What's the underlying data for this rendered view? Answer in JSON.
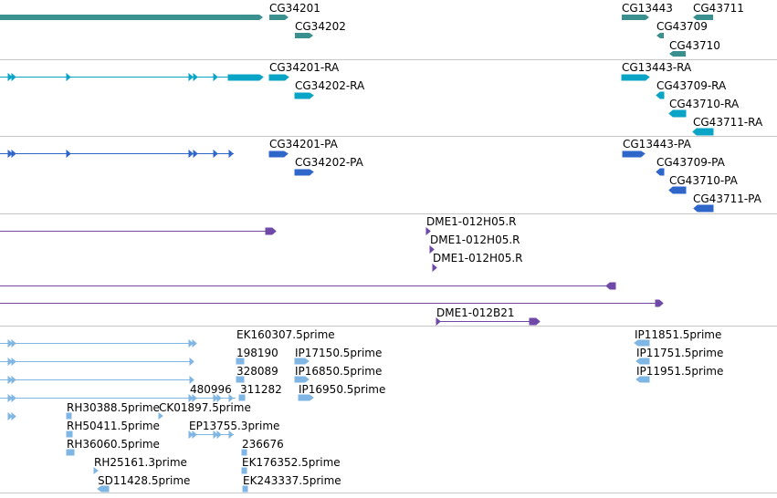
{
  "colors": {
    "gene": "#3a8f8f",
    "transcript": "#0aa5c6",
    "protein": "#2f66c9",
    "clone": "#6f48a8",
    "est": "#7fb6e3",
    "divider": "#c8c8c8",
    "text": "#000000"
  },
  "tracks": {
    "genes": [
      "CG34201",
      "CG34202",
      "CG13443",
      "CG43711",
      "CG43709",
      "CG43710"
    ],
    "transcripts": [
      "CG34201-RA",
      "CG34202-RA",
      "CG13443-RA",
      "CG43709-RA",
      "CG43710-RA",
      "CG43711-RA"
    ],
    "proteins": [
      "CG34201-PA",
      "CG34202-PA",
      "CG13443-PA",
      "CG43709-PA",
      "CG43710-PA",
      "CG43711-PA"
    ],
    "clone_ends": [
      "DME1-012H05.R",
      "DME1-012H05.R",
      "DME1-012H05.R",
      "DME1-012B21"
    ],
    "ests": [
      "EK160307.5prime",
      "198190",
      "IP17150.5prime",
      "328089",
      "IP16850.5prime",
      "480996",
      "311282",
      "IP16950.5prime",
      "RH30388.5prime",
      "CK01897.5prime",
      "RH50411.5prime",
      "EP13755.3prime",
      "RH36060.5prime",
      "236676",
      "RH25161.3prime",
      "EK176352.5prime",
      "SD11428.5prime",
      "EK243337.5prime",
      "IP11851.5prime",
      "IP11751.5prime",
      "IP11951.5prime"
    ]
  }
}
